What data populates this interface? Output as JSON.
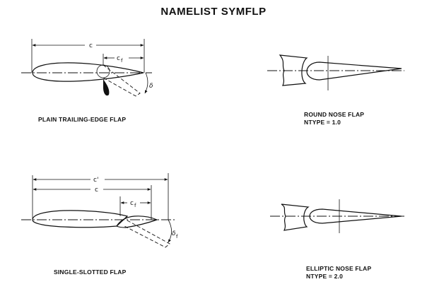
{
  "title": "NAMELIST SYMFLP",
  "panels": {
    "plain": {
      "caption": "PLAIN TRAILING-EDGE FLAP",
      "chord_label": "c",
      "flap_chord_label": "c",
      "flap_chord_sub": "f",
      "deflection_label": "δ"
    },
    "round_nose": {
      "caption_line1": "ROUND NOSE FLAP",
      "caption_line2": "NTYPE = 1.0"
    },
    "single_slotted": {
      "caption": "SINGLE-SLOTTED FLAP",
      "extended_chord_label": "c'",
      "chord_label": "c",
      "flap_chord_label": "c",
      "flap_chord_sub": "f",
      "deflection_label": "δ",
      "deflection_sub": "f"
    },
    "elliptic_nose": {
      "caption_line1": "ELLIPTIC NOSE FLAP",
      "caption_line2": "NTYPE = 2.0"
    }
  }
}
